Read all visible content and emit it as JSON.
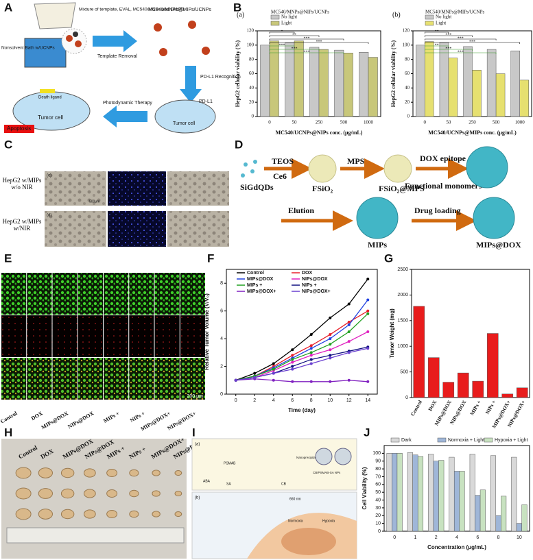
{
  "panel_labels": [
    "A",
    "B",
    "C",
    "D",
    "E",
    "F",
    "G",
    "H",
    "I",
    "J"
  ],
  "panel_a": {
    "mixture": "Mixture of template, EVAL, MC540/MNPs and DMSO.",
    "bath": "Nonsolvent Bath w/UCNPs",
    "removal": "Template Removal",
    "product": "MC540/MNPs@MIPs/UCNPs",
    "recognition": "PD-L1 Recognition",
    "therapy": "Photodynamic Therapy",
    "death_ligand": "Death ligand",
    "pdl1": "PD-L1",
    "tumor_left": "Tumor cell",
    "tumor_right": "Tumor cell",
    "apoptosis": "Apoptosis"
  },
  "panel_c": {
    "sub_labels": [
      "(c)",
      "(d)"
    ],
    "row_labels": [
      "HepG2 w/MIPs w/o NIR",
      "HepG2 w/MIPs w/NIR"
    ],
    "scale": "500μm"
  },
  "panel_d": {
    "teos": "TEOS",
    "ce6": "Ce6",
    "mps": "MPS",
    "dox": "DOX epitope",
    "monomers": "Functional monomers",
    "qds": "SiGdQDs",
    "fsio2": "FSiO₂",
    "fsio2mps": "FSiO₂@MPS",
    "elution": "Elution",
    "loading": "Drug loading",
    "mips": "MIPs",
    "mipsdox": "MIPs@DOX"
  },
  "panel_e": {
    "labels": [
      "Control",
      "DOX",
      "MIPs@DOX",
      "NIPs@DOX",
      "MIPs +",
      "NIPs +",
      "MIPs@DOX+",
      "NIPs@DOX+"
    ],
    "scale": "200 μm"
  },
  "panel_h": {
    "labels": [
      "Control",
      "DOX",
      "MIPs@DOX",
      "NIPs@DOX",
      "MIPs +",
      "NIPs +",
      "MIPs@DOX+",
      "NIPs@DOX+"
    ]
  },
  "panel_i": {
    "a": "(a)",
    "b": "(b)",
    "aba": "ABA",
    "psmab": "PSMAB",
    "sa": "SA",
    "cb": "CB",
    "nano": "Nanoprecipitation",
    "nps": "CB/PSMAB-SA NPs",
    "nm": "660 nm",
    "normoxia": "Normoxia",
    "hypoxia": "Hypoxia"
  },
  "chart_data": [
    {
      "type": "bar",
      "title": "(a)",
      "legend_title": "MC540/MNPs@NIPs/UCNPs",
      "x_label": "MC540/UCNPs@NIPs conc. (μg/mL)",
      "y_label": "HepG2 cellular viability (%)",
      "categories": [
        "0",
        "50",
        "250",
        "500",
        "1000"
      ],
      "series": [
        {
          "name": "No light",
          "color": "#c8c8c8",
          "values": [
            100,
            103,
            97,
            93,
            90
          ]
        },
        {
          "name": "Light",
          "color": "#c8c77a",
          "values": [
            106,
            106,
            94,
            89,
            83
          ]
        }
      ],
      "ylim": [
        0,
        120
      ],
      "yticks": [
        0,
        20,
        40,
        60,
        80,
        100,
        120
      ],
      "annotations": [
        "*",
        "**",
        "***",
        "***",
        "***",
        "***",
        "***"
      ]
    },
    {
      "type": "bar",
      "title": "(b)",
      "legend_title": "MC540/MNPs@MIPs/UCNPs",
      "x_label": "MC540/UCNPs@MIPs conc. (μg/mL)",
      "y_label": "HepG2 cellular viability (%)",
      "categories": [
        "0",
        "50",
        "250",
        "500",
        "1000"
      ],
      "series": [
        {
          "name": "No light",
          "color": "#c8c8c8",
          "values": [
            100,
            104,
            98,
            94,
            92
          ]
        },
        {
          "name": "Light",
          "color": "#e6e070",
          "values": [
            105,
            82,
            65,
            60,
            51
          ]
        }
      ],
      "ylim": [
        0,
        120
      ],
      "yticks": [
        0,
        20,
        40,
        60,
        80,
        100,
        120
      ],
      "annotations": [
        "**",
        "***",
        "***",
        "***",
        "**",
        "***",
        "***"
      ]
    },
    {
      "type": "line",
      "x_label": "Time (day)",
      "y_label": "Relative Tumor Volume (V/V₀)",
      "x": [
        0,
        2,
        4,
        6,
        8,
        10,
        12,
        14
      ],
      "xlim": [
        -1,
        15
      ],
      "xticks": [
        0,
        2,
        4,
        6,
        8,
        10,
        12,
        14
      ],
      "ylim": [
        0,
        9
      ],
      "yticks": [
        0,
        2,
        4,
        6,
        8
      ],
      "series": [
        {
          "name": "Control",
          "color": "#000000",
          "values": [
            1,
            1.5,
            2.2,
            3.2,
            4.3,
            5.5,
            6.5,
            8.3
          ]
        },
        {
          "name": "DOX",
          "color": "#e8202a",
          "values": [
            1,
            1.3,
            2,
            2.8,
            3.5,
            4.3,
            5.2,
            6
          ]
        },
        {
          "name": "MIPs@DOX",
          "color": "#2040e0",
          "values": [
            1,
            1.3,
            1.9,
            2.6,
            3.3,
            4,
            5,
            6.8
          ]
        },
        {
          "name": "NIPs@DOX",
          "color": "#e020c0",
          "values": [
            1,
            1.2,
            1.7,
            2.3,
            2.8,
            3.2,
            3.8,
            4.5
          ]
        },
        {
          "name": "MIPs +",
          "color": "#20a020",
          "values": [
            1,
            1.3,
            1.8,
            2.5,
            3,
            3.6,
            4.5,
            5.8
          ]
        },
        {
          "name": "NIPs +",
          "color": "#101080",
          "values": [
            1,
            1.2,
            1.5,
            2,
            2.5,
            2.8,
            3.1,
            3.4
          ]
        },
        {
          "name": "MIPs@DOX+",
          "color": "#8020c0",
          "values": [
            1,
            1.1,
            1,
            0.9,
            0.9,
            0.9,
            1,
            0.9
          ]
        },
        {
          "name": "NIPs@DOX+",
          "color": "#6a40d0",
          "values": [
            1,
            1.2,
            1.5,
            1.8,
            2.2,
            2.6,
            3,
            3.3
          ]
        }
      ]
    },
    {
      "type": "bar",
      "y_label": "Tumor Weight (mg)",
      "categories": [
        "Control",
        "DOX",
        "MIPs@DOX",
        "NIPs@DOX",
        "MIPs +",
        "NIPs +",
        "MIPs@DOX+",
        "NIPs@DOX+"
      ],
      "series": [
        {
          "color": "#e81c1c",
          "values": [
            1780,
            780,
            300,
            480,
            320,
            1250,
            70,
            190
          ]
        }
      ],
      "ylim": [
        0,
        2500
      ],
      "yticks": [
        0,
        500,
        1000,
        1500,
        2000,
        2500
      ]
    },
    {
      "type": "bar",
      "x_label": "Concentration (μg/mL)",
      "y_label": "Cell Viability (%)",
      "categories": [
        "0",
        "1",
        "2",
        "4",
        "6",
        "8",
        "10"
      ],
      "series": [
        {
          "name": "Dark",
          "color": "#d9d9d9",
          "values": [
            100,
            101,
            99,
            95,
            99,
            97,
            95
          ]
        },
        {
          "name": "Normoxia + Light",
          "color": "#9fb6d8",
          "values": [
            100,
            98,
            90,
            77,
            46,
            20,
            10
          ]
        },
        {
          "name": "Hypoxia + Light",
          "color": "#c8e2c0",
          "values": [
            100,
            96,
            91,
            77,
            53,
            45,
            34
          ]
        }
      ],
      "ylim": [
        0,
        110
      ],
      "yticks": [
        0,
        10,
        20,
        30,
        40,
        50,
        60,
        70,
        80,
        90,
        100
      ]
    }
  ]
}
